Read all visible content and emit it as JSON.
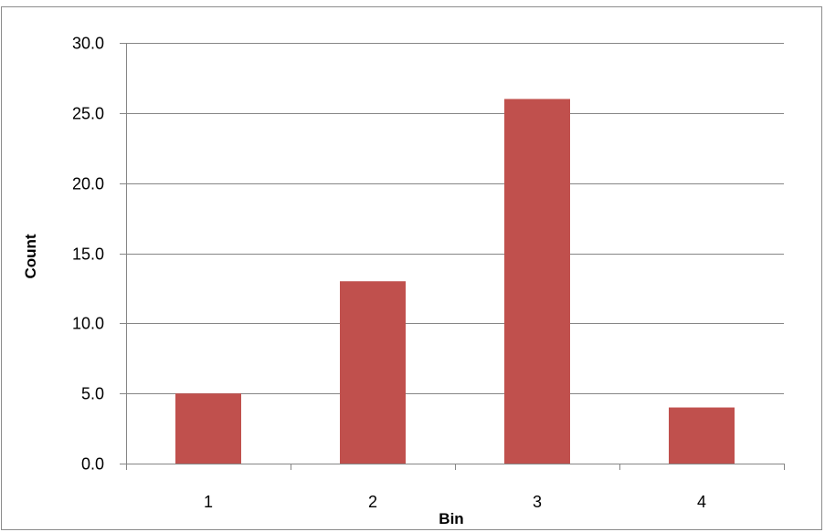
{
  "chart_data": {
    "type": "bar",
    "title": "",
    "xlabel": "Bin",
    "ylabel": "Count",
    "categories": [
      "1",
      "2",
      "3",
      "4"
    ],
    "values": [
      5,
      13,
      26,
      4
    ],
    "ylim": [
      0,
      30
    ],
    "yticks": [
      "0.0",
      "5.0",
      "10.0",
      "15.0",
      "20.0",
      "25.0",
      "30.0"
    ],
    "grid": true,
    "legend": "none",
    "colors": {
      "bar": "#c0504d",
      "grid": "#868686",
      "axis": "#868686"
    }
  }
}
